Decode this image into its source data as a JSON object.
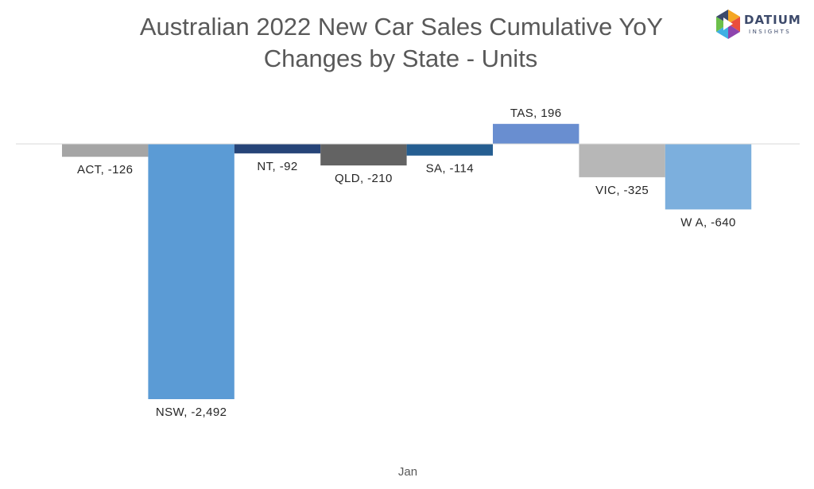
{
  "chart_data": {
    "type": "bar",
    "title": "Australian 2022 New Car Sales Cumulative YoY Changes by State - Units",
    "title_lines": [
      "Australian 2022 New Car Sales Cumulative YoY",
      "Changes by State - Units"
    ],
    "categories": [
      "Jan"
    ],
    "series": [
      {
        "name": "ACT",
        "values": [
          -126
        ],
        "color": "#a5a5a5",
        "label": "ACT, -126"
      },
      {
        "name": "NSW",
        "values": [
          -2492
        ],
        "color": "#5b9bd5",
        "label": "NSW, -2,492"
      },
      {
        "name": "NT",
        "values": [
          -92
        ],
        "color": "#264478",
        "label": "NT, -92"
      },
      {
        "name": "QLD",
        "values": [
          -210
        ],
        "color": "#636363",
        "label": "QLD, -210"
      },
      {
        "name": "SA",
        "values": [
          -114
        ],
        "color": "#255e91",
        "label": "SA, -114"
      },
      {
        "name": "TAS",
        "values": [
          196
        ],
        "color": "#698ed0",
        "label": "TAS, 196"
      },
      {
        "name": "VIC",
        "values": [
          -325
        ],
        "color": "#b7b7b7",
        "label": "VIC, -325"
      },
      {
        "name": "WA",
        "values": [
          -640
        ],
        "color": "#7cafdd",
        "label": "W A, -640"
      }
    ],
    "data_labels": true,
    "legend": "none",
    "grid": false,
    "xlabel": "",
    "ylabel": ""
  },
  "logo": {
    "brand_name": "DATIUM",
    "brand_sub": "INSIGHTS",
    "colors": [
      "#3d4a6b",
      "#e94e3c",
      "#f5a623",
      "#3fb0e3",
      "#6cc04a",
      "#8e44ad"
    ]
  }
}
